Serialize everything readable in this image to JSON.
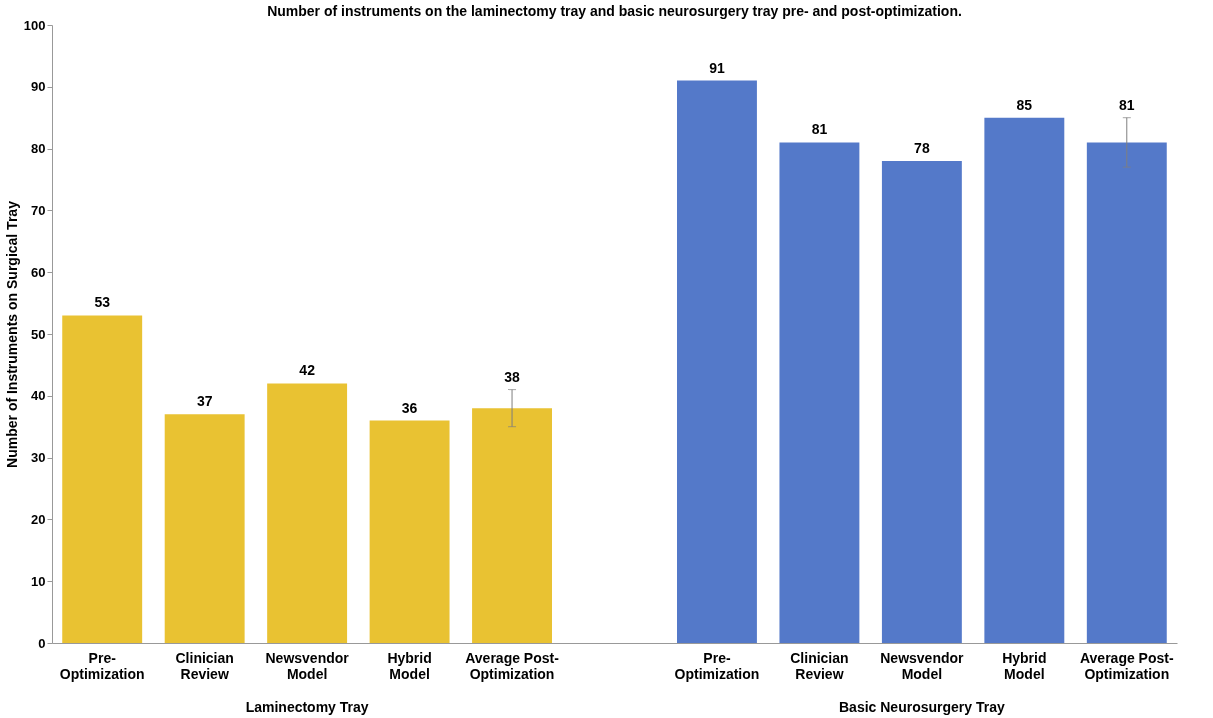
{
  "chart_data": {
    "type": "bar",
    "title": "Number of instruments on the laminectomy tray and basic neurosurgery tray pre- and post-optimization.",
    "ylabel": "Number of Instruments on Surgical Tray",
    "categories": [
      "Pre-Optimization",
      "Clinician Review",
      "Newsvendor Model",
      "Hybrid Model",
      "Average Post-Optimization",
      null,
      "Pre-Optimization",
      "Clinician Review",
      "Newsvendor Model",
      "Hybrid Model",
      "Average Post-Optimization"
    ],
    "series": [
      {
        "color": "#e9c232",
        "values": [
          53,
          37,
          42,
          36,
          38,
          null,
          null,
          null,
          null,
          null,
          null
        ],
        "errors": [
          null,
          null,
          null,
          null,
          3,
          null,
          null,
          null,
          null,
          null,
          null
        ]
      },
      {
        "color": "#5479c9",
        "values": [
          null,
          null,
          null,
          null,
          null,
          null,
          91,
          81,
          78,
          85,
          81
        ],
        "errors": [
          null,
          null,
          null,
          null,
          null,
          null,
          null,
          null,
          null,
          null,
          4
        ]
      }
    ],
    "ylim": [
      0,
      100
    ],
    "yticks": [
      0,
      10,
      20,
      30,
      40,
      50,
      60,
      70,
      80,
      90,
      100
    ],
    "data_labels": true,
    "annotations": [
      "Laminectomy Tray",
      "Basic Neurosurgery Tray"
    ]
  }
}
